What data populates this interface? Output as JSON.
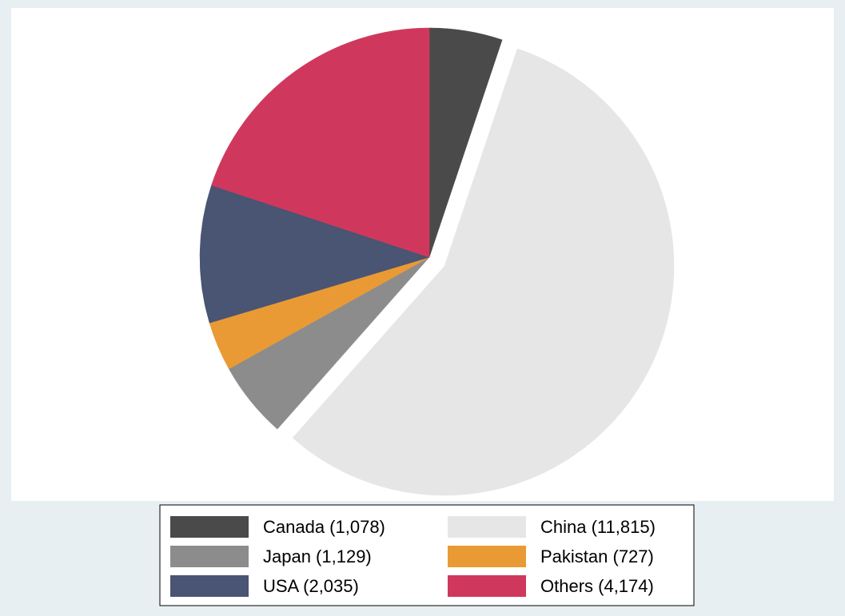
{
  "chart_data": {
    "type": "pie",
    "categories": [
      "Canada (1,078)",
      "China (11,815)",
      "Japan (1,129)",
      "Pakistan (727)",
      "USA (2,035)",
      "Others (4,174)"
    ],
    "values": [
      1078,
      11815,
      1129,
      727,
      2035,
      4174
    ],
    "colors": [
      "#4a4a4a",
      "#e6e6e6",
      "#8c8c8c",
      "#ea9a34",
      "#4a5473",
      "#cf385c"
    ],
    "explode": [
      "China (11,815)"
    ],
    "legend": "bottom"
  }
}
